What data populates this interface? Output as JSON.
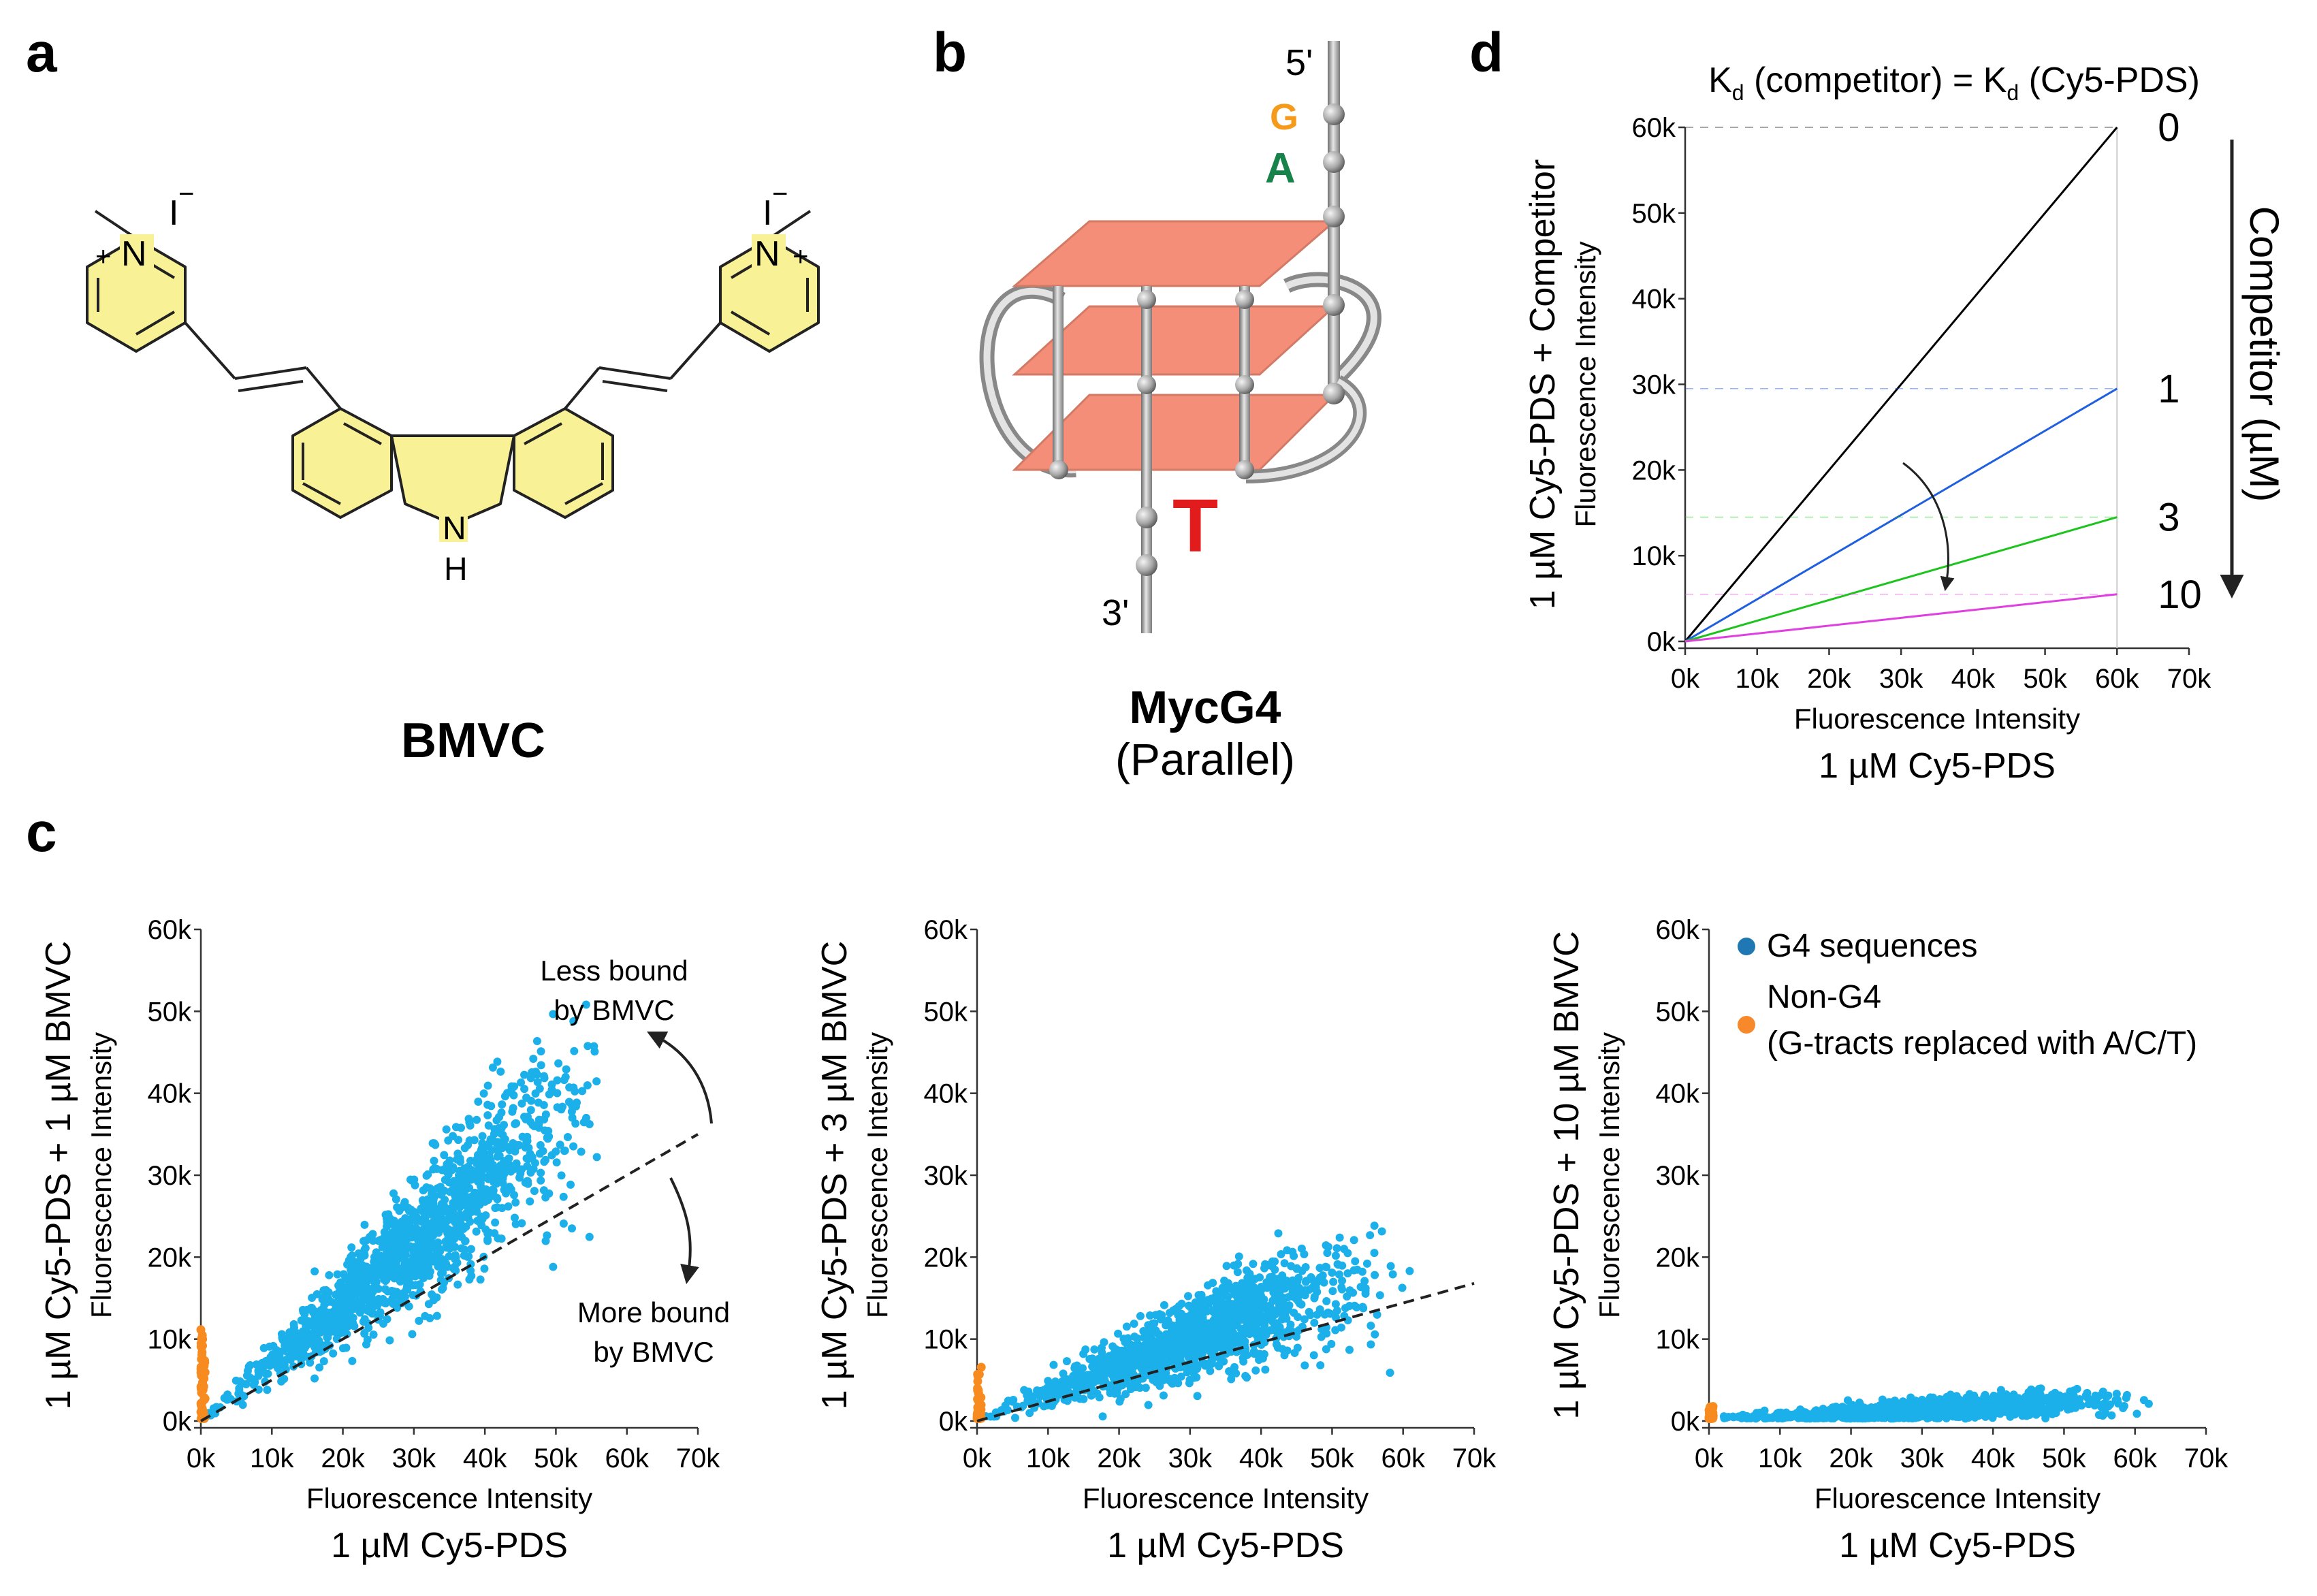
{
  "panels": {
    "a": {
      "letter": "a",
      "name": "BMVC",
      "atoms": {
        "n_left": "N",
        "plus_left": "+",
        "iodide_left": "I",
        "minus_left": "−",
        "n_right": "N",
        "plus_right": "+",
        "iodide_right": "I",
        "minus_right": "−",
        "nh_n": "N",
        "nh_h": "H"
      }
    },
    "b": {
      "letter": "b",
      "name": "MycG4",
      "subtitle": "(Parallel)",
      "five_prime": "5'",
      "three_prime": "3'",
      "base_g": "G",
      "base_a": "A",
      "base_t": "T"
    },
    "c": {
      "letter": "c"
    },
    "d": {
      "letter": "d",
      "title_k1": "K",
      "title_sub1": "d",
      "title_mid": " (competitor) = K",
      "title_sub2": "d",
      "title_end": " (Cy5-PDS)",
      "competitor_axis_label": "Competitor (µM)"
    }
  },
  "colors": {
    "scatter_blue": "#1bb0ea",
    "non_g4_orange": "#f78b1f",
    "legend_blue": "#1f77b4",
    "legend_orange": "#f7892a",
    "g_orange": "#f59a1b",
    "a_green": "#17834a",
    "t_red": "#e21c1c",
    "quartet_salmon": "#f48e78",
    "line_0": "#000000",
    "line_1": "#1f5fe0",
    "line_3": "#1ec41e",
    "line_10": "#e040e0"
  },
  "chart_data": [
    {
      "id": "c1",
      "type": "scatter",
      "title": "",
      "xlabel_top": "Fluorescence Intensity",
      "xlabel_bottom": "1 µM Cy5-PDS",
      "ylabel_inner": "Fluorescence Intensity",
      "ylabel_outer": "1 µM Cy5-PDS + 1 µM BMVC",
      "xlim": [
        0,
        70000
      ],
      "ylim": [
        0,
        60000
      ],
      "x_ticks": [
        "0k",
        "10k",
        "20k",
        "30k",
        "40k",
        "50k",
        "60k",
        "70k"
      ],
      "y_ticks": [
        "0k",
        "10k",
        "20k",
        "30k",
        "40k",
        "50k",
        "60k"
      ],
      "cloud": {
        "slope_center": 0.72,
        "slope_spread": 0.28,
        "x_mean": 30000,
        "x_max": 56000
      },
      "fit_slope": 0.5,
      "annotation_up": [
        "Less bound",
        "by BMVC"
      ],
      "annotation_down": [
        "More bound",
        "by BMVC"
      ],
      "non_g4_max_y": 11500
    },
    {
      "id": "c2",
      "type": "scatter",
      "title": "",
      "xlabel_top": "Fluorescence Intensity",
      "xlabel_bottom": "1 µM Cy5-PDS",
      "ylabel_inner": "Fluorescence Intensity",
      "ylabel_outer": "1 µM Cy5-PDS + 3 µM BMVC",
      "xlim": [
        0,
        70000
      ],
      "ylim": [
        0,
        60000
      ],
      "x_ticks": [
        "0k",
        "10k",
        "20k",
        "30k",
        "40k",
        "50k",
        "60k",
        "70k"
      ],
      "y_ticks": [
        "0k",
        "10k",
        "20k",
        "30k",
        "40k",
        "50k",
        "60k"
      ],
      "cloud": {
        "slope_center": 0.33,
        "slope_spread": 0.17,
        "x_mean": 30000,
        "x_max": 62000
      },
      "fit_slope": 0.24,
      "non_g4_max_y": 6500
    },
    {
      "id": "c3",
      "type": "scatter",
      "title": "",
      "xlabel_top": "Fluorescence Intensity",
      "xlabel_bottom": "1 µM Cy5-PDS",
      "ylabel_inner": "Fluorescence Intensity",
      "ylabel_outer": "1 µM Cy5-PDS + 10 µM BMVC",
      "xlim": [
        0,
        70000
      ],
      "ylim": [
        0,
        60000
      ],
      "x_ticks": [
        "0k",
        "10k",
        "20k",
        "30k",
        "40k",
        "50k",
        "60k",
        "70k"
      ],
      "y_ticks": [
        "0k",
        "10k",
        "20k",
        "30k",
        "40k",
        "50k",
        "60k"
      ],
      "cloud": {
        "slope_center": 0.045,
        "slope_spread": 0.03,
        "x_mean": 30000,
        "x_max": 62000
      },
      "non_g4_max_y": 1500,
      "legend": [
        {
          "name": "G4 sequences"
        },
        {
          "name": "Non-G4",
          "sub": "(G-tracts replaced with A/C/T)"
        }
      ]
    },
    {
      "id": "d",
      "type": "line",
      "title": "Kd (competitor) = Kd (Cy5-PDS)",
      "xlabel_top": "Fluorescence Intensity",
      "xlabel_bottom": "1 µM Cy5-PDS",
      "ylabel_inner": "Fluorescence Intensity",
      "ylabel_outer": "1 µM Cy5-PDS + Competitor",
      "xlim": [
        0,
        70000
      ],
      "ylim": [
        0,
        60000
      ],
      "x_ticks": [
        "0k",
        "10k",
        "20k",
        "30k",
        "40k",
        "50k",
        "60k",
        "70k"
      ],
      "y_ticks": [
        "0k",
        "10k",
        "20k",
        "30k",
        "40k",
        "50k",
        "60k"
      ],
      "series": [
        {
          "name": "0",
          "x": [
            0,
            60000
          ],
          "y": [
            0,
            60000
          ]
        },
        {
          "name": "1",
          "x": [
            0,
            60000
          ],
          "y": [
            0,
            29500
          ]
        },
        {
          "name": "3",
          "x": [
            0,
            60000
          ],
          "y": [
            0,
            14500
          ]
        },
        {
          "name": "10",
          "x": [
            0,
            60000
          ],
          "y": [
            0,
            5500
          ]
        }
      ]
    }
  ]
}
